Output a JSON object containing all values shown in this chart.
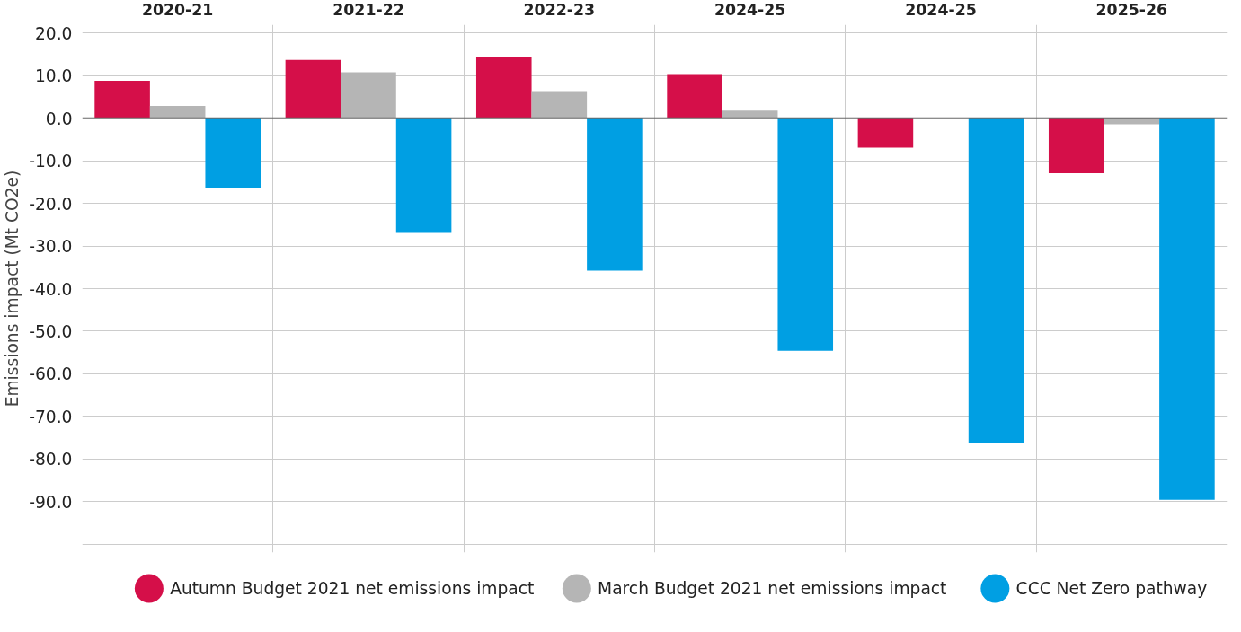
{
  "chart_data": {
    "type": "bar",
    "ylabel": "Emissions impact (Mt CO2e)",
    "categories": [
      "2020-21",
      "2021-22",
      "2022-23",
      "2024-25",
      "2024-25",
      "2025-26"
    ],
    "series": [
      {
        "name": "Autumn Budget 2021 net emissions impact",
        "color": "#d50f49",
        "values": [
          8.8,
          13.7,
          14.3,
          10.4,
          -6.9,
          -12.9
        ]
      },
      {
        "name": "March Budget 2021 net emissions impact",
        "color": "#b5b5b5",
        "values": [
          2.9,
          10.8,
          6.4,
          1.8,
          null,
          -1.4
        ]
      },
      {
        "name": "CCC Net Zero pathway",
        "color": "#009fe3",
        "values": [
          -16.3,
          -26.7,
          -35.8,
          -54.6,
          -76.3,
          -89.6
        ]
      }
    ],
    "ylim": [
      -102,
      22
    ],
    "yticks": [
      {
        "value": 20,
        "label": "20.0"
      },
      {
        "value": 10,
        "label": "10.0"
      },
      {
        "value": 0,
        "label": "0.0"
      },
      {
        "value": -10,
        "label": "-10.0"
      },
      {
        "value": -20,
        "label": "-20.0"
      },
      {
        "value": -30,
        "label": "-30.0"
      },
      {
        "value": -40,
        "label": "-40.0"
      },
      {
        "value": -50,
        "label": "-50.0"
      },
      {
        "value": -60,
        "label": "-60.0"
      },
      {
        "value": -70,
        "label": "-70.0"
      },
      {
        "value": -80,
        "label": "-80.0"
      },
      {
        "value": -90,
        "label": "-90.0"
      },
      {
        "value": -100,
        "label": null
      }
    ],
    "grid": true,
    "legend": "bottom"
  }
}
